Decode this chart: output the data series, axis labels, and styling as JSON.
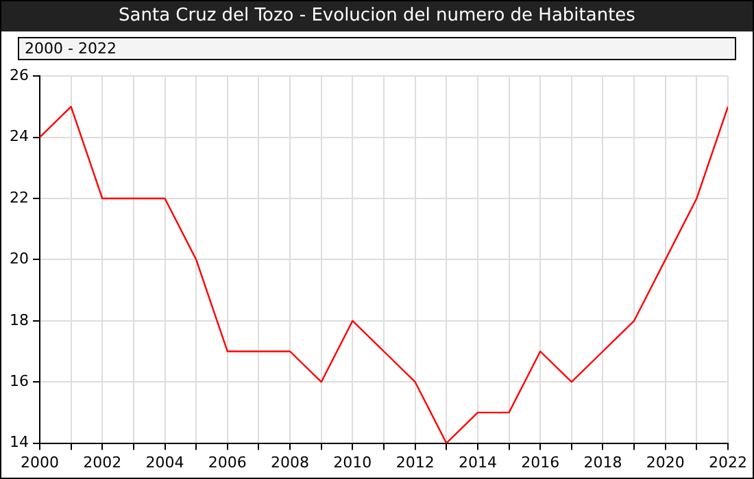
{
  "chart_data": {
    "type": "line",
    "title": "Santa Cruz del Tozo - Evolucion del numero de Habitantes",
    "annotations": [
      "2000 - 2022"
    ],
    "x": [
      2000,
      2001,
      2002,
      2003,
      2004,
      2005,
      2006,
      2007,
      2008,
      2009,
      2010,
      2011,
      2012,
      2013,
      2014,
      2015,
      2016,
      2017,
      2018,
      2019,
      2020,
      2021,
      2022
    ],
    "series": [
      {
        "color": "#ff0000",
        "values": [
          24,
          25,
          22,
          22,
          22,
          20,
          17,
          17,
          17,
          16,
          18,
          17,
          16,
          14,
          15,
          15,
          17,
          16,
          17,
          18,
          20,
          22,
          25
        ]
      }
    ],
    "xlim": [
      2000,
      2022
    ],
    "xticks": [
      2000,
      {
        "value": 2001,
        "label": null
      },
      2002,
      {
        "value": 2003,
        "label": null
      },
      2004,
      {
        "value": 2005,
        "label": null
      },
      2006,
      {
        "value": 2007,
        "label": null
      },
      2008,
      {
        "value": 2009,
        "label": null
      },
      2010,
      {
        "value": 2011,
        "label": null
      },
      2012,
      {
        "value": 2013,
        "label": null
      },
      2014,
      {
        "value": 2015,
        "label": null
      },
      2016,
      {
        "value": 2017,
        "label": null
      },
      2018,
      {
        "value": 2019,
        "label": null
      },
      2020,
      {
        "value": 2021,
        "label": null
      },
      2022
    ],
    "ylim": [
      14,
      26
    ],
    "yticks": [
      14,
      16,
      18,
      20,
      22,
      24,
      26
    ],
    "grid": true,
    "legend": false,
    "marker": "none",
    "line_style": "solid"
  }
}
